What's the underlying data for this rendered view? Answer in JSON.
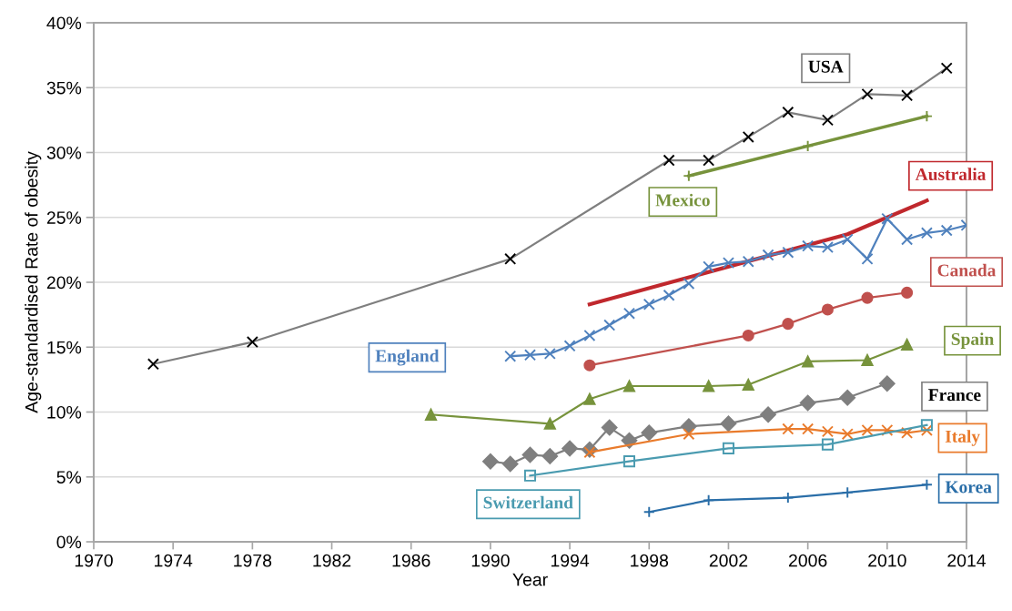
{
  "chart_data": {
    "type": "line",
    "xlabel": "Year",
    "ylabel": "Age-standardised Rate of obesity",
    "xlim": [
      1970,
      2014
    ],
    "xticks": [
      1970,
      1974,
      1978,
      1982,
      1986,
      1990,
      1994,
      1998,
      2002,
      2006,
      2010,
      2014
    ],
    "ylim": [
      0,
      40
    ],
    "yticks": [
      {
        "value": 0,
        "label": "0%"
      },
      {
        "value": 5,
        "label": "5%"
      },
      {
        "value": 10,
        "label": "10%"
      },
      {
        "value": 15,
        "label": "15%"
      },
      {
        "value": 20,
        "label": "20%"
      },
      {
        "value": 25,
        "label": "25%"
      },
      {
        "value": 30,
        "label": "30%"
      },
      {
        "value": 35,
        "label": "35%"
      },
      {
        "value": 40,
        "label": "40%"
      }
    ],
    "grid": "y",
    "legend": false,
    "line_style": "solid",
    "series": [
      {
        "name": "USA",
        "color": "#7f7f7f",
        "marker": "cross",
        "x": [
          1973,
          1978,
          1991,
          1999,
          2001,
          2003,
          2005,
          2007,
          2009,
          2011,
          2013
        ],
        "values": [
          13.7,
          15.4,
          21.8,
          29.4,
          29.4,
          31.2,
          33.1,
          32.5,
          34.5,
          34.4,
          36.5
        ]
      },
      {
        "name": "Mexico",
        "color": "#77933c",
        "marker": "plus",
        "x": [
          2000,
          2006,
          2012
        ],
        "values": [
          28.2,
          30.5,
          32.8
        ]
      },
      {
        "name": "Australia",
        "color": "#c0282d",
        "marker": "none",
        "x": [
          1995,
          2008,
          2012
        ],
        "values": [
          18.3,
          23.7,
          26.3
        ]
      },
      {
        "name": "England",
        "color": "#4f81bd",
        "marker": "cross",
        "x": [
          1991,
          1992,
          1993,
          1994,
          1995,
          1996,
          1997,
          1998,
          1999,
          2000,
          2001,
          2002,
          2003,
          2004,
          2005,
          2006,
          2007,
          2008,
          2009,
          2010,
          2011,
          2012,
          2013,
          2014
        ],
        "values": [
          14.3,
          14.4,
          14.5,
          15.1,
          15.9,
          16.7,
          17.6,
          18.3,
          19.0,
          19.9,
          21.2,
          21.5,
          21.6,
          22.1,
          22.3,
          22.8,
          22.7,
          23.3,
          21.8,
          24.9,
          23.3,
          23.8,
          24.0,
          24.4
        ]
      },
      {
        "name": "Canada",
        "color": "#c0504d",
        "marker": "circle",
        "x": [
          1995,
          2003,
          2005,
          2007,
          2009,
          2011
        ],
        "values": [
          13.6,
          15.9,
          16.8,
          17.9,
          18.8,
          19.2
        ]
      },
      {
        "name": "Spain",
        "color": "#77933c",
        "marker": "triangle",
        "x": [
          1987,
          1993,
          1995,
          1997,
          2001,
          2003,
          2006,
          2009,
          2011
        ],
        "values": [
          9.8,
          9.1,
          11.0,
          12.0,
          12.0,
          12.1,
          13.9,
          14.0,
          15.2
        ]
      },
      {
        "name": "France",
        "color": "#7f7f7f",
        "marker": "diamond",
        "x": [
          1990,
          1991,
          1992,
          1993,
          1994,
          1995,
          1996,
          1997,
          1998,
          2000,
          2002,
          2004,
          2006,
          2008,
          2010
        ],
        "values": [
          6.2,
          6.0,
          6.7,
          6.6,
          7.2,
          7.1,
          8.8,
          7.8,
          8.4,
          8.9,
          9.1,
          9.8,
          10.7,
          11.1,
          12.2
        ]
      },
      {
        "name": "Italy",
        "color": "#e97b2c",
        "marker": "cross",
        "x": [
          1995,
          2000,
          2005,
          2006,
          2007,
          2008,
          2009,
          2010,
          2011,
          2012
        ],
        "values": [
          6.9,
          8.3,
          8.7,
          8.7,
          8.5,
          8.3,
          8.6,
          8.6,
          8.4,
          8.6
        ]
      },
      {
        "name": "Switzerland",
        "color": "#4a9bb0",
        "marker": "square",
        "x": [
          1992,
          1997,
          2002,
          2007,
          2012
        ],
        "values": [
          5.1,
          6.2,
          7.2,
          7.5,
          9.0
        ]
      },
      {
        "name": "Korea",
        "color": "#2a6ea8",
        "marker": "plus",
        "x": [
          1998,
          2001,
          2005,
          2008,
          2012
        ],
        "values": [
          2.3,
          3.2,
          3.4,
          3.8,
          4.4
        ]
      }
    ]
  }
}
